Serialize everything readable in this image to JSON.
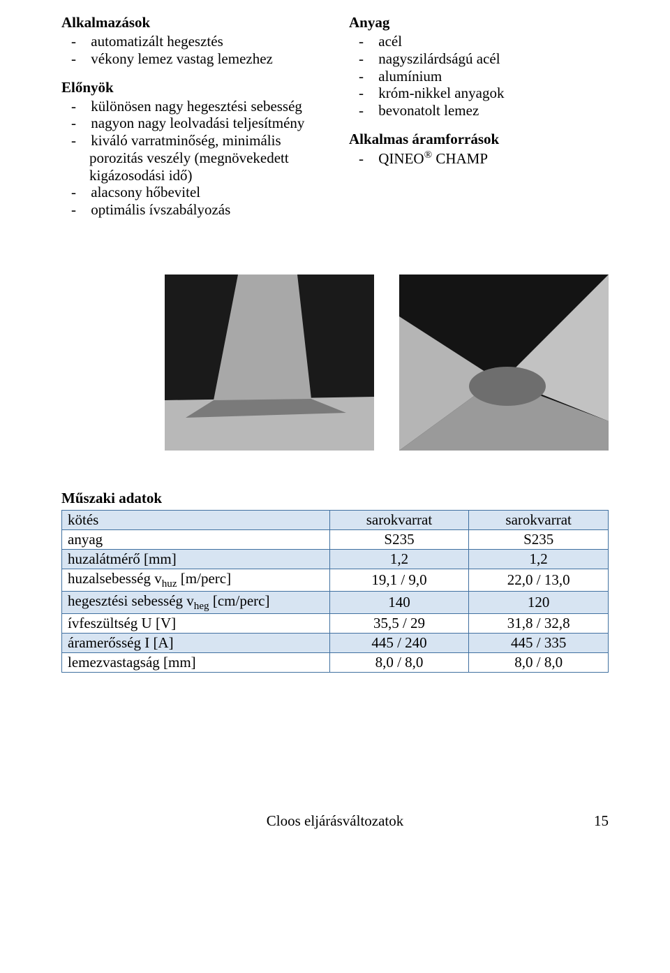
{
  "left": {
    "apps_heading": "Alkalmazások",
    "apps_items": [
      "automatizált hegesztés",
      "vékony lemez vastag lemezhez"
    ],
    "adv_heading": "Előnyök",
    "adv_items": [
      "különösen nagy hegesztési sebesség",
      "nagyon nagy leolvadási teljesítmény",
      "kiváló varratminőség, minimális porozitás veszély (megnövekedett kigázosodási idő)",
      "alacsony hőbevitel",
      "optimális ívszabályozás"
    ]
  },
  "right": {
    "mat_heading": "Anyag",
    "mat_items": [
      "acél",
      "nagyszilárdságú acél",
      "alumínium",
      "króm-nikkel anyagok",
      "bevonatolt lemez"
    ],
    "src_heading": "Alkalmas áramforrások",
    "src_items_html": [
      "QINEO<sup>®</sup> CHAMP"
    ]
  },
  "tech": {
    "title": "Műszaki adatok",
    "rows": [
      {
        "label_html": "kötés",
        "c1": "sarokvarrat",
        "c2": "sarokvarrat"
      },
      {
        "label_html": "anyag",
        "c1": "S235",
        "c2": "S235"
      },
      {
        "label_html": "huzalátmérő [mm]",
        "c1": "1,2",
        "c2": "1,2"
      },
      {
        "label_html": "huzalsebesség v<sub>huz</sub> [m/perc]",
        "c1": "19,1 / 9,0",
        "c2": "22,0 / 13,0"
      },
      {
        "label_html": "hegesztési sebesség v<sub>heg</sub> [cm/perc]",
        "c1": "140",
        "c2": "120"
      },
      {
        "label_html": "ívfeszültség U [V]",
        "c1": "35,5 / 29",
        "c2": "31,8 / 32,8"
      },
      {
        "label_html": "áramerősség I [A]",
        "c1": "445 / 240",
        "c2": "445 / 335"
      },
      {
        "label_html": "lemezvastagság [mm]",
        "c1": "8,0 / 8,0",
        "c2": "8,0 / 8,0"
      }
    ],
    "table_style": {
      "border_color": "#4070a0",
      "row_alt_bg": "#d7e4f2",
      "row_bg": "#ffffff",
      "font_size_pt": 16
    }
  },
  "footer": {
    "text": "Cloos eljárásváltozatok",
    "page": "15"
  }
}
